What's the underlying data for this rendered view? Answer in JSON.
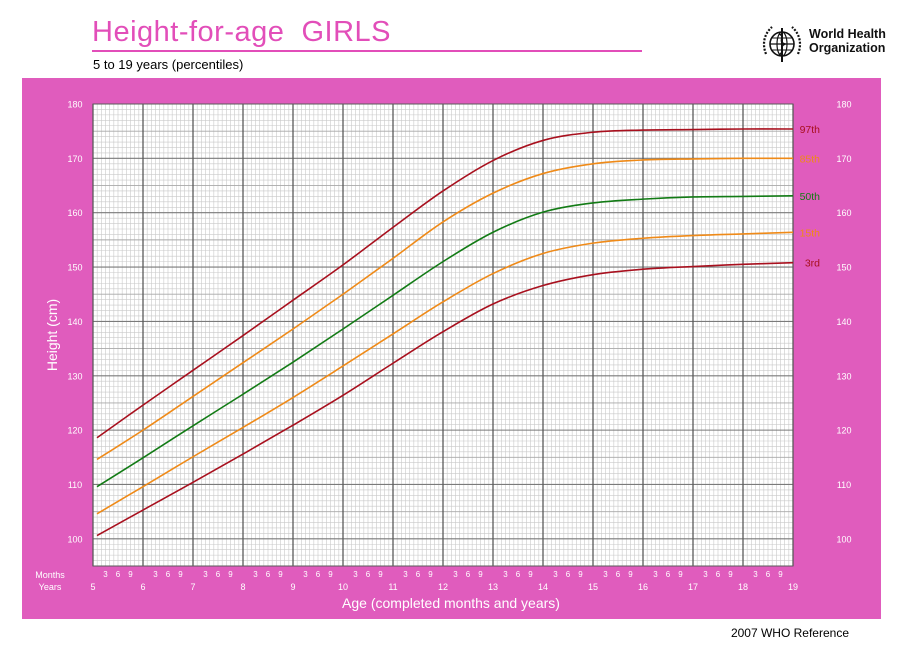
{
  "header": {
    "title": "Height-for-age  GIRLS",
    "subtitle": "5 to 19 years (percentiles)",
    "logo_line1": "World Health",
    "logo_line2": "Organization"
  },
  "footer": {
    "reference": "2007 WHO Reference"
  },
  "colors": {
    "panel": "#e05cbd",
    "plot_bg": "#ffffff",
    "p3": "#a8101e",
    "p15": "#ef8a18",
    "p50": "#127b15",
    "p85": "#ef8a18",
    "p97": "#a8101e"
  },
  "chart_data": {
    "type": "line",
    "title": "Height-for-age  GIRLS",
    "subtitle": "5 to 19 years (percentiles)",
    "xlabel": "Age (completed months and years)",
    "ylabel": "Height (cm)",
    "xlim": [
      5,
      19
    ],
    "ylim": [
      95,
      180
    ],
    "x_ticks": [
      5,
      6,
      7,
      8,
      9,
      10,
      11,
      12,
      13,
      14,
      15,
      16,
      17,
      18,
      19
    ],
    "y_ticks": [
      100,
      110,
      120,
      130,
      140,
      150,
      160,
      170,
      180
    ],
    "month_ticks": [
      3,
      6,
      9
    ],
    "months_label": "Months",
    "years_label": "Years",
    "grid": true,
    "x": [
      5.08,
      6,
      7,
      8,
      9,
      10,
      11,
      12,
      13,
      14,
      15,
      16,
      17,
      18,
      19
    ],
    "series": [
      {
        "name": "97th",
        "values": [
          118.6,
          124.6,
          131.0,
          137.4,
          143.9,
          150.4,
          157.3,
          164.0,
          169.6,
          173.3,
          174.8,
          175.2,
          175.3,
          175.4,
          175.4
        ]
      },
      {
        "name": "85th",
        "values": [
          114.6,
          120.0,
          126.2,
          132.4,
          138.6,
          145.0,
          151.6,
          158.3,
          163.6,
          167.2,
          169.0,
          169.7,
          169.9,
          170.0,
          170.0
        ]
      },
      {
        "name": "50th",
        "values": [
          109.6,
          114.9,
          120.8,
          126.6,
          132.5,
          138.6,
          144.8,
          151.0,
          156.4,
          160.1,
          161.8,
          162.5,
          162.9,
          163.0,
          163.1
        ]
      },
      {
        "name": "15th",
        "values": [
          104.6,
          109.6,
          115.1,
          120.5,
          126.0,
          131.8,
          137.7,
          143.6,
          148.8,
          152.5,
          154.4,
          155.3,
          155.8,
          156.1,
          156.4
        ]
      },
      {
        "name": "3rd",
        "values": [
          100.6,
          105.3,
          110.4,
          115.6,
          120.9,
          126.4,
          132.3,
          138.1,
          143.2,
          146.6,
          148.6,
          149.6,
          150.1,
          150.5,
          150.8
        ]
      }
    ]
  }
}
